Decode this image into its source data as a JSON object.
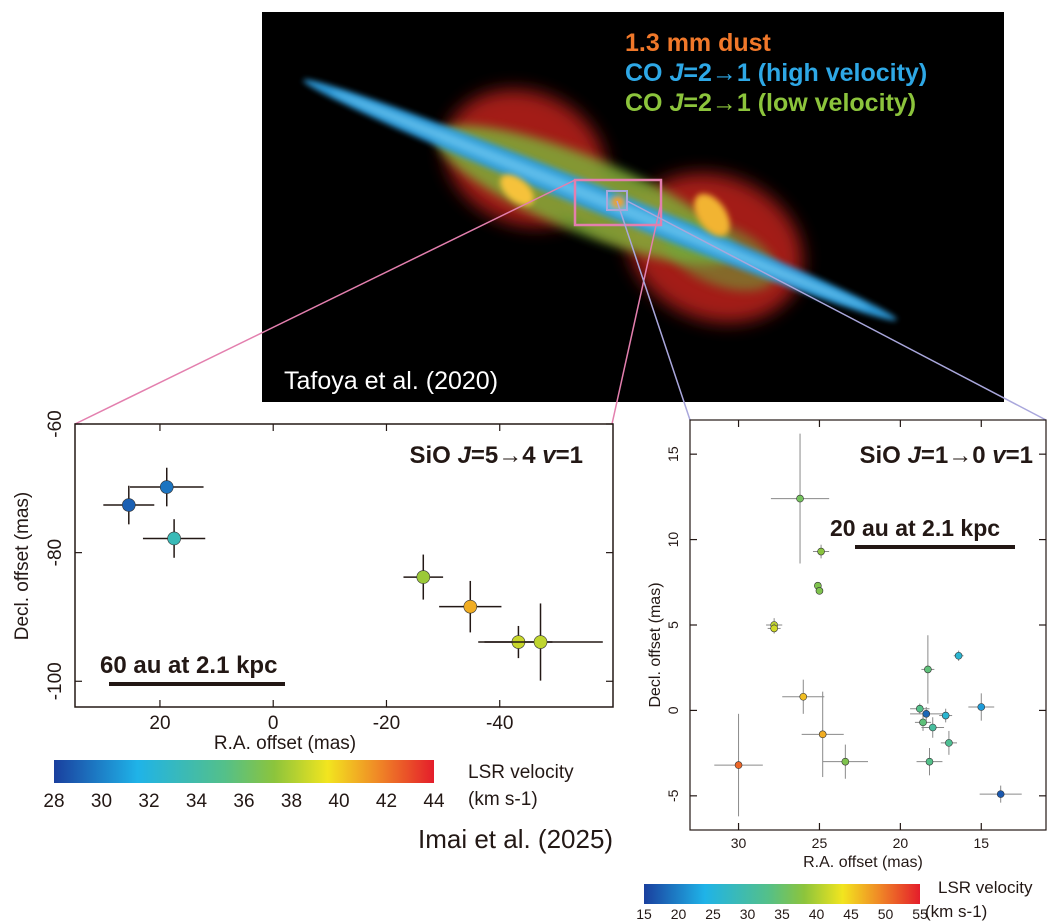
{
  "top_image": {
    "legend": {
      "line1": "1.3 mm dust",
      "line2_prefix": "CO ",
      "line2_J": "J",
      "line2_trans": "=2→1 (high velocity)",
      "line3_prefix": "CO ",
      "line3_J": "J",
      "line3_trans": "=2→1 (low velocity)"
    },
    "credit": "Tafoya et al. (2020)",
    "colors": {
      "dust": "#f0782a",
      "co_high": "#2ea8e6",
      "co_low": "#8cc43c"
    }
  },
  "bottom_credit": "Imai et al. (2025)",
  "chart_data": [
    {
      "type": "scatter",
      "title_prefix": "SiO ",
      "title_J": "J",
      "title_trans": "=5→4 ",
      "title_v": "v",
      "title_suffix": "=1",
      "xlabel": "R.A. offset (mas)",
      "ylabel": "Decl. offset (mas)",
      "xlim": [
        35,
        -60
      ],
      "ylim": [
        -104,
        -60
      ],
      "xticks": [
        20,
        0,
        -20,
        -40
      ],
      "yticks": [
        -60,
        -80,
        -100
      ],
      "scalebar": "60 au at 2.1 kpc",
      "colorbar": {
        "label_line1": "LSR velocity",
        "label_line2": "(km s-1)",
        "min": 28,
        "max": 44,
        "ticks": [
          28,
          30,
          32,
          34,
          36,
          38,
          40,
          42,
          44
        ]
      },
      "points": [
        {
          "x": 25.5,
          "y": -72.6,
          "v": 29.0,
          "xerr": 4.5,
          "yerr": 3.0
        },
        {
          "x": 18.8,
          "y": -69.8,
          "v": 29.6,
          "xerr": 6.5,
          "yerr": 3.0
        },
        {
          "x": 17.5,
          "y": -77.8,
          "v": 33.4,
          "xerr": 5.5,
          "yerr": 3.0
        },
        {
          "x": -26.5,
          "y": -83.8,
          "v": 37.6,
          "xerr": 3.5,
          "yerr": 3.5
        },
        {
          "x": -34.8,
          "y": -88.4,
          "v": 40.8,
          "xerr": 5.5,
          "yerr": 4.0
        },
        {
          "x": -43.3,
          "y": -93.9,
          "v": 38.6,
          "xerr": 6.0,
          "yerr": 2.5
        },
        {
          "x": -47.2,
          "y": -93.9,
          "v": 38.4,
          "xerr": 11.0,
          "yerr": 6.0
        }
      ]
    },
    {
      "type": "scatter",
      "title_prefix": "SiO ",
      "title_J": "J",
      "title_trans": "=1→0 ",
      "title_v": "v",
      "title_suffix": "=1",
      "xlabel": "R.A. offset (mas)",
      "ylabel": "Decl. offset (mas)",
      "xlim": [
        33,
        11
      ],
      "ylim": [
        -7,
        17
      ],
      "xticks": [
        30,
        25,
        20,
        15
      ],
      "yticks": [
        -5,
        0,
        5,
        10,
        15
      ],
      "scalebar": "20 au at 2.1 kpc",
      "colorbar": {
        "label_line1": "LSR velocity",
        "label_line2": "(km s-1)",
        "min": 15,
        "max": 55,
        "ticks": [
          15,
          20,
          25,
          30,
          35,
          40,
          45,
          50,
          55
        ]
      },
      "points": [
        {
          "x": 30.0,
          "y": -3.2,
          "v": 51,
          "xerr": 1.5,
          "yerr": 3.0
        },
        {
          "x": 26.2,
          "y": 12.4,
          "v": 36,
          "xerr": 1.8,
          "yerr": 3.8
        },
        {
          "x": 24.9,
          "y": 9.3,
          "v": 38,
          "xerr": 0.5,
          "yerr": 0.4
        },
        {
          "x": 25.1,
          "y": 7.3,
          "v": 37,
          "xerr": 0.2,
          "yerr": 0.2
        },
        {
          "x": 25.0,
          "y": 7.0,
          "v": 37,
          "xerr": 0.2,
          "yerr": 0.2
        },
        {
          "x": 27.8,
          "y": 5.0,
          "v": 41,
          "xerr": 0.5,
          "yerr": 0.4
        },
        {
          "x": 27.8,
          "y": 4.8,
          "v": 42,
          "xerr": 0.4,
          "yerr": 0.3
        },
        {
          "x": 26.0,
          "y": 0.8,
          "v": 46,
          "xerr": 1.3,
          "yerr": 1.0
        },
        {
          "x": 24.8,
          "y": -1.4,
          "v": 47,
          "xerr": 1.3,
          "yerr": 2.5
        },
        {
          "x": 23.4,
          "y": -3.0,
          "v": 37,
          "xerr": 1.4,
          "yerr": 1.0
        },
        {
          "x": 18.3,
          "y": 2.4,
          "v": 34,
          "xerr": 0.4,
          "yerr": 2.0
        },
        {
          "x": 18.8,
          "y": 0.1,
          "v": 33,
          "xerr": 0.6,
          "yerr": 0.3
        },
        {
          "x": 18.6,
          "y": -0.7,
          "v": 34,
          "xerr": 0.5,
          "yerr": 0.5
        },
        {
          "x": 18.4,
          "y": -0.2,
          "v": 18,
          "xerr": 1.0,
          "yerr": 0.4
        },
        {
          "x": 18.0,
          "y": -1.0,
          "v": 31,
          "xerr": 0.7,
          "yerr": 0.6
        },
        {
          "x": 18.2,
          "y": -3.0,
          "v": 33,
          "xerr": 0.8,
          "yerr": 0.8
        },
        {
          "x": 17.2,
          "y": -0.3,
          "v": 26,
          "xerr": 0.4,
          "yerr": 0.4
        },
        {
          "x": 17.0,
          "y": -1.9,
          "v": 32,
          "xerr": 0.5,
          "yerr": 0.7
        },
        {
          "x": 16.4,
          "y": 3.2,
          "v": 26,
          "xerr": 0.3,
          "yerr": 0.3
        },
        {
          "x": 15.0,
          "y": 0.2,
          "v": 22,
          "xerr": 0.8,
          "yerr": 0.8
        },
        {
          "x": 13.8,
          "y": -4.9,
          "v": 17,
          "xerr": 1.3,
          "yerr": 0.5
        }
      ]
    }
  ]
}
